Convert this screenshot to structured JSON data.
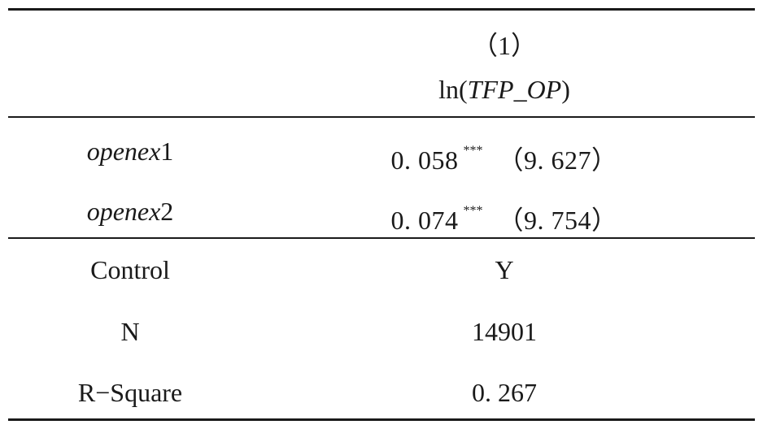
{
  "header": {
    "column_number": "（1）",
    "dependent_prefix": "ln(",
    "dependent_var": "TFP_OP",
    "dependent_suffix": ")"
  },
  "rows": [
    {
      "label_italic": "openex",
      "label_suffix": "1",
      "coef": "0. 058",
      "stars": "***",
      "tstat": "（9. 627）"
    },
    {
      "label_italic": "openex",
      "label_suffix": "2",
      "coef": "0. 074",
      "stars": "***",
      "tstat": "（9. 754）"
    }
  ],
  "footer": [
    {
      "label": "Control",
      "value": "Y"
    },
    {
      "label": "N",
      "value": "14901"
    },
    {
      "label": "R−Square",
      "value": "0. 267"
    }
  ]
}
